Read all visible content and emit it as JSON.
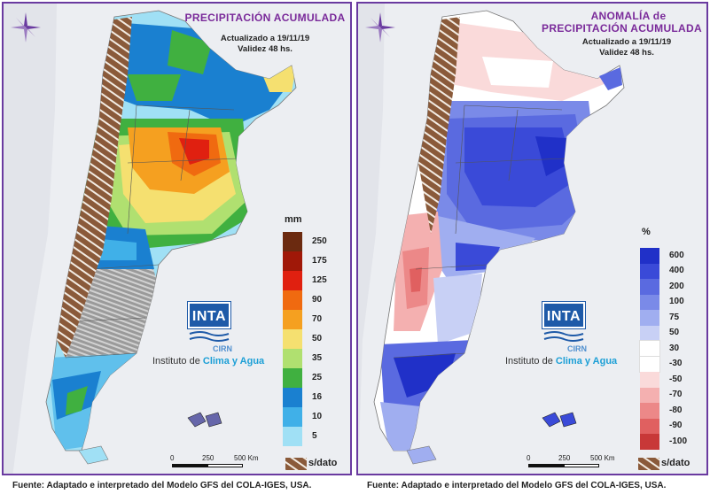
{
  "left_panel": {
    "title": "PRECIPITACIÓN ACUMULADA",
    "updated": "Actualizado a 19/11/19",
    "validity": "Validez 48 hs.",
    "legend_unit": "mm",
    "legend_labels": [
      "250",
      "175",
      "125",
      "90",
      "70",
      "50",
      "35",
      "25",
      "16",
      "10",
      "5"
    ],
    "legend_colors": [
      "#6b2a10",
      "#a01808",
      "#e02010",
      "#f06a10",
      "#f5a020",
      "#f5e070",
      "#b0e070",
      "#40b040",
      "#1a80d0",
      "#40b0e8",
      "#a0e0f5"
    ],
    "nodata_label": "s/dato",
    "scale_ticks": [
      "0",
      "250",
      "500 Km"
    ],
    "logo_text": "INTA",
    "cirn_text": "CIRN",
    "institute_prefix": "Instituto de ",
    "institute_highlight": "Clima y Agua",
    "footer": "Fuente: Adaptado e interpretado del Modelo GFS del COLA-IGES, USA."
  },
  "right_panel": {
    "title_line1": "ANOMALÍA de",
    "title_line2": "PRECIPITACIÓN ACUMULADA",
    "updated": "Actualizado a 19/11/19",
    "validity": "Validez 48 hs.",
    "legend_unit": "%",
    "legend_labels": [
      "600",
      "400",
      "200",
      "100",
      "75",
      "50",
      "30",
      "-30",
      "-50",
      "-70",
      "-80",
      "-90",
      "-100"
    ],
    "legend_colors": [
      "#2030c8",
      "#3a4ad8",
      "#5a6ae0",
      "#7a8ae8",
      "#a0aef0",
      "#c8d0f5",
      "#ffffff",
      "#ffffff",
      "#fadada",
      "#f4b0b0",
      "#ec8888",
      "#e06060",
      "#c83838"
    ],
    "nodata_label": "s/dato",
    "scale_ticks": [
      "0",
      "250",
      "500 Km"
    ],
    "logo_text": "INTA",
    "cirn_text": "CIRN",
    "institute_prefix": "Instituto de ",
    "institute_highlight": "Clima y Agua",
    "footer": "Fuente: Adaptado e interpretado del Modelo GFS del COLA-IGES, USA."
  },
  "colors": {
    "frame": "#6a3aa0",
    "title": "#7a2a9a",
    "background": "#e9e9f1",
    "nodata_brown": "#8a5a3a",
    "logo_blue": "#1e5aa8"
  }
}
